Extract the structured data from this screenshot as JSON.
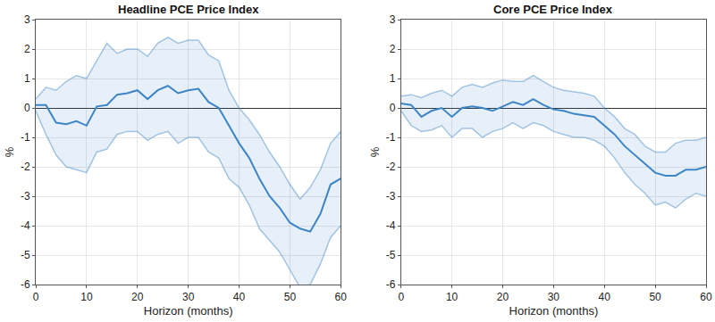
{
  "chart_data": [
    {
      "type": "line",
      "title": "Headline PCE Price Index",
      "x_label": "Horizon (months)",
      "y_label": "%",
      "x": [
        0,
        2,
        4,
        6,
        8,
        10,
        12,
        14,
        16,
        18,
        20,
        22,
        24,
        26,
        28,
        30,
        32,
        34,
        36,
        38,
        40,
        42,
        44,
        46,
        48,
        50,
        52,
        54,
        56,
        58,
        60
      ],
      "values": [
        0.1,
        0.1,
        -0.5,
        -0.55,
        -0.45,
        -0.6,
        0.05,
        0.1,
        0.45,
        0.5,
        0.6,
        0.3,
        0.6,
        0.75,
        0.5,
        0.6,
        0.65,
        0.2,
        0.0,
        -0.6,
        -1.2,
        -1.7,
        -2.4,
        -3.0,
        -3.4,
        -3.9,
        -4.1,
        -4.2,
        -3.6,
        -2.6,
        -2.4
      ],
      "upper": [
        0.3,
        0.7,
        0.6,
        0.9,
        1.1,
        1.0,
        1.6,
        2.2,
        1.85,
        2.0,
        2.0,
        1.75,
        2.2,
        2.4,
        2.2,
        2.3,
        2.3,
        1.8,
        1.6,
        0.6,
        0.0,
        -0.4,
        -0.9,
        -1.5,
        -2.0,
        -2.6,
        -3.1,
        -2.7,
        -2.1,
        -1.2,
        -0.8
      ],
      "lower": [
        -0.1,
        -0.9,
        -1.6,
        -2.0,
        -2.1,
        -2.2,
        -1.5,
        -1.4,
        -0.9,
        -0.8,
        -0.8,
        -1.1,
        -0.9,
        -0.8,
        -1.2,
        -1.0,
        -1.0,
        -1.5,
        -1.7,
        -2.4,
        -2.7,
        -3.3,
        -4.1,
        -4.5,
        -4.9,
        -5.5,
        -6.1,
        -6.0,
        -5.3,
        -4.4,
        -4.0
      ],
      "color": "#3d85c6",
      "xlim": [
        0,
        60
      ],
      "xticks": [
        0,
        10,
        20,
        30,
        40,
        50,
        60
      ],
      "ylim": [
        -6,
        3
      ],
      "yticks": [
        -6,
        -5,
        -4,
        -3,
        -2,
        -1,
        0,
        1,
        2,
        3
      ],
      "grid": true
    },
    {
      "type": "line",
      "title": "Core PCE Price Index",
      "x_label": "Horizon (months)",
      "y_label": "%",
      "x": [
        0,
        2,
        4,
        6,
        8,
        10,
        12,
        14,
        16,
        18,
        20,
        22,
        24,
        26,
        28,
        30,
        32,
        34,
        36,
        38,
        40,
        42,
        44,
        46,
        48,
        50,
        52,
        54,
        56,
        58,
        60
      ],
      "values": [
        0.15,
        0.1,
        -0.3,
        -0.1,
        0.0,
        -0.3,
        0.0,
        0.05,
        0.0,
        -0.1,
        0.05,
        0.2,
        0.1,
        0.3,
        0.1,
        -0.05,
        -0.1,
        -0.2,
        -0.25,
        -0.3,
        -0.6,
        -0.9,
        -1.3,
        -1.6,
        -1.9,
        -2.2,
        -2.3,
        -2.3,
        -2.1,
        -2.1,
        -2.0
      ],
      "upper": [
        0.4,
        0.45,
        0.35,
        0.5,
        0.6,
        0.4,
        0.7,
        0.8,
        0.7,
        0.85,
        0.95,
        0.9,
        0.9,
        1.1,
        0.9,
        0.7,
        0.6,
        0.55,
        0.5,
        0.4,
        0.0,
        -0.3,
        -0.7,
        -0.9,
        -1.3,
        -1.5,
        -1.5,
        -1.2,
        -1.1,
        -1.1,
        -1.0
      ],
      "lower": [
        -0.1,
        -0.6,
        -0.8,
        -0.75,
        -0.6,
        -1.0,
        -0.7,
        -0.7,
        -1.0,
        -0.8,
        -0.7,
        -0.5,
        -0.7,
        -0.5,
        -0.6,
        -0.8,
        -0.9,
        -1.0,
        -1.0,
        -1.1,
        -1.3,
        -1.7,
        -2.2,
        -2.6,
        -2.9,
        -3.3,
        -3.2,
        -3.4,
        -3.1,
        -2.9,
        -3.0
      ],
      "color": "#3d85c6",
      "xlim": [
        0,
        60
      ],
      "xticks": [
        0,
        10,
        20,
        30,
        40,
        50,
        60
      ],
      "ylim": [
        -6,
        3
      ],
      "yticks": [
        -6,
        -5,
        -4,
        -3,
        -2,
        -1,
        0,
        1,
        2,
        3
      ],
      "grid": true
    }
  ]
}
